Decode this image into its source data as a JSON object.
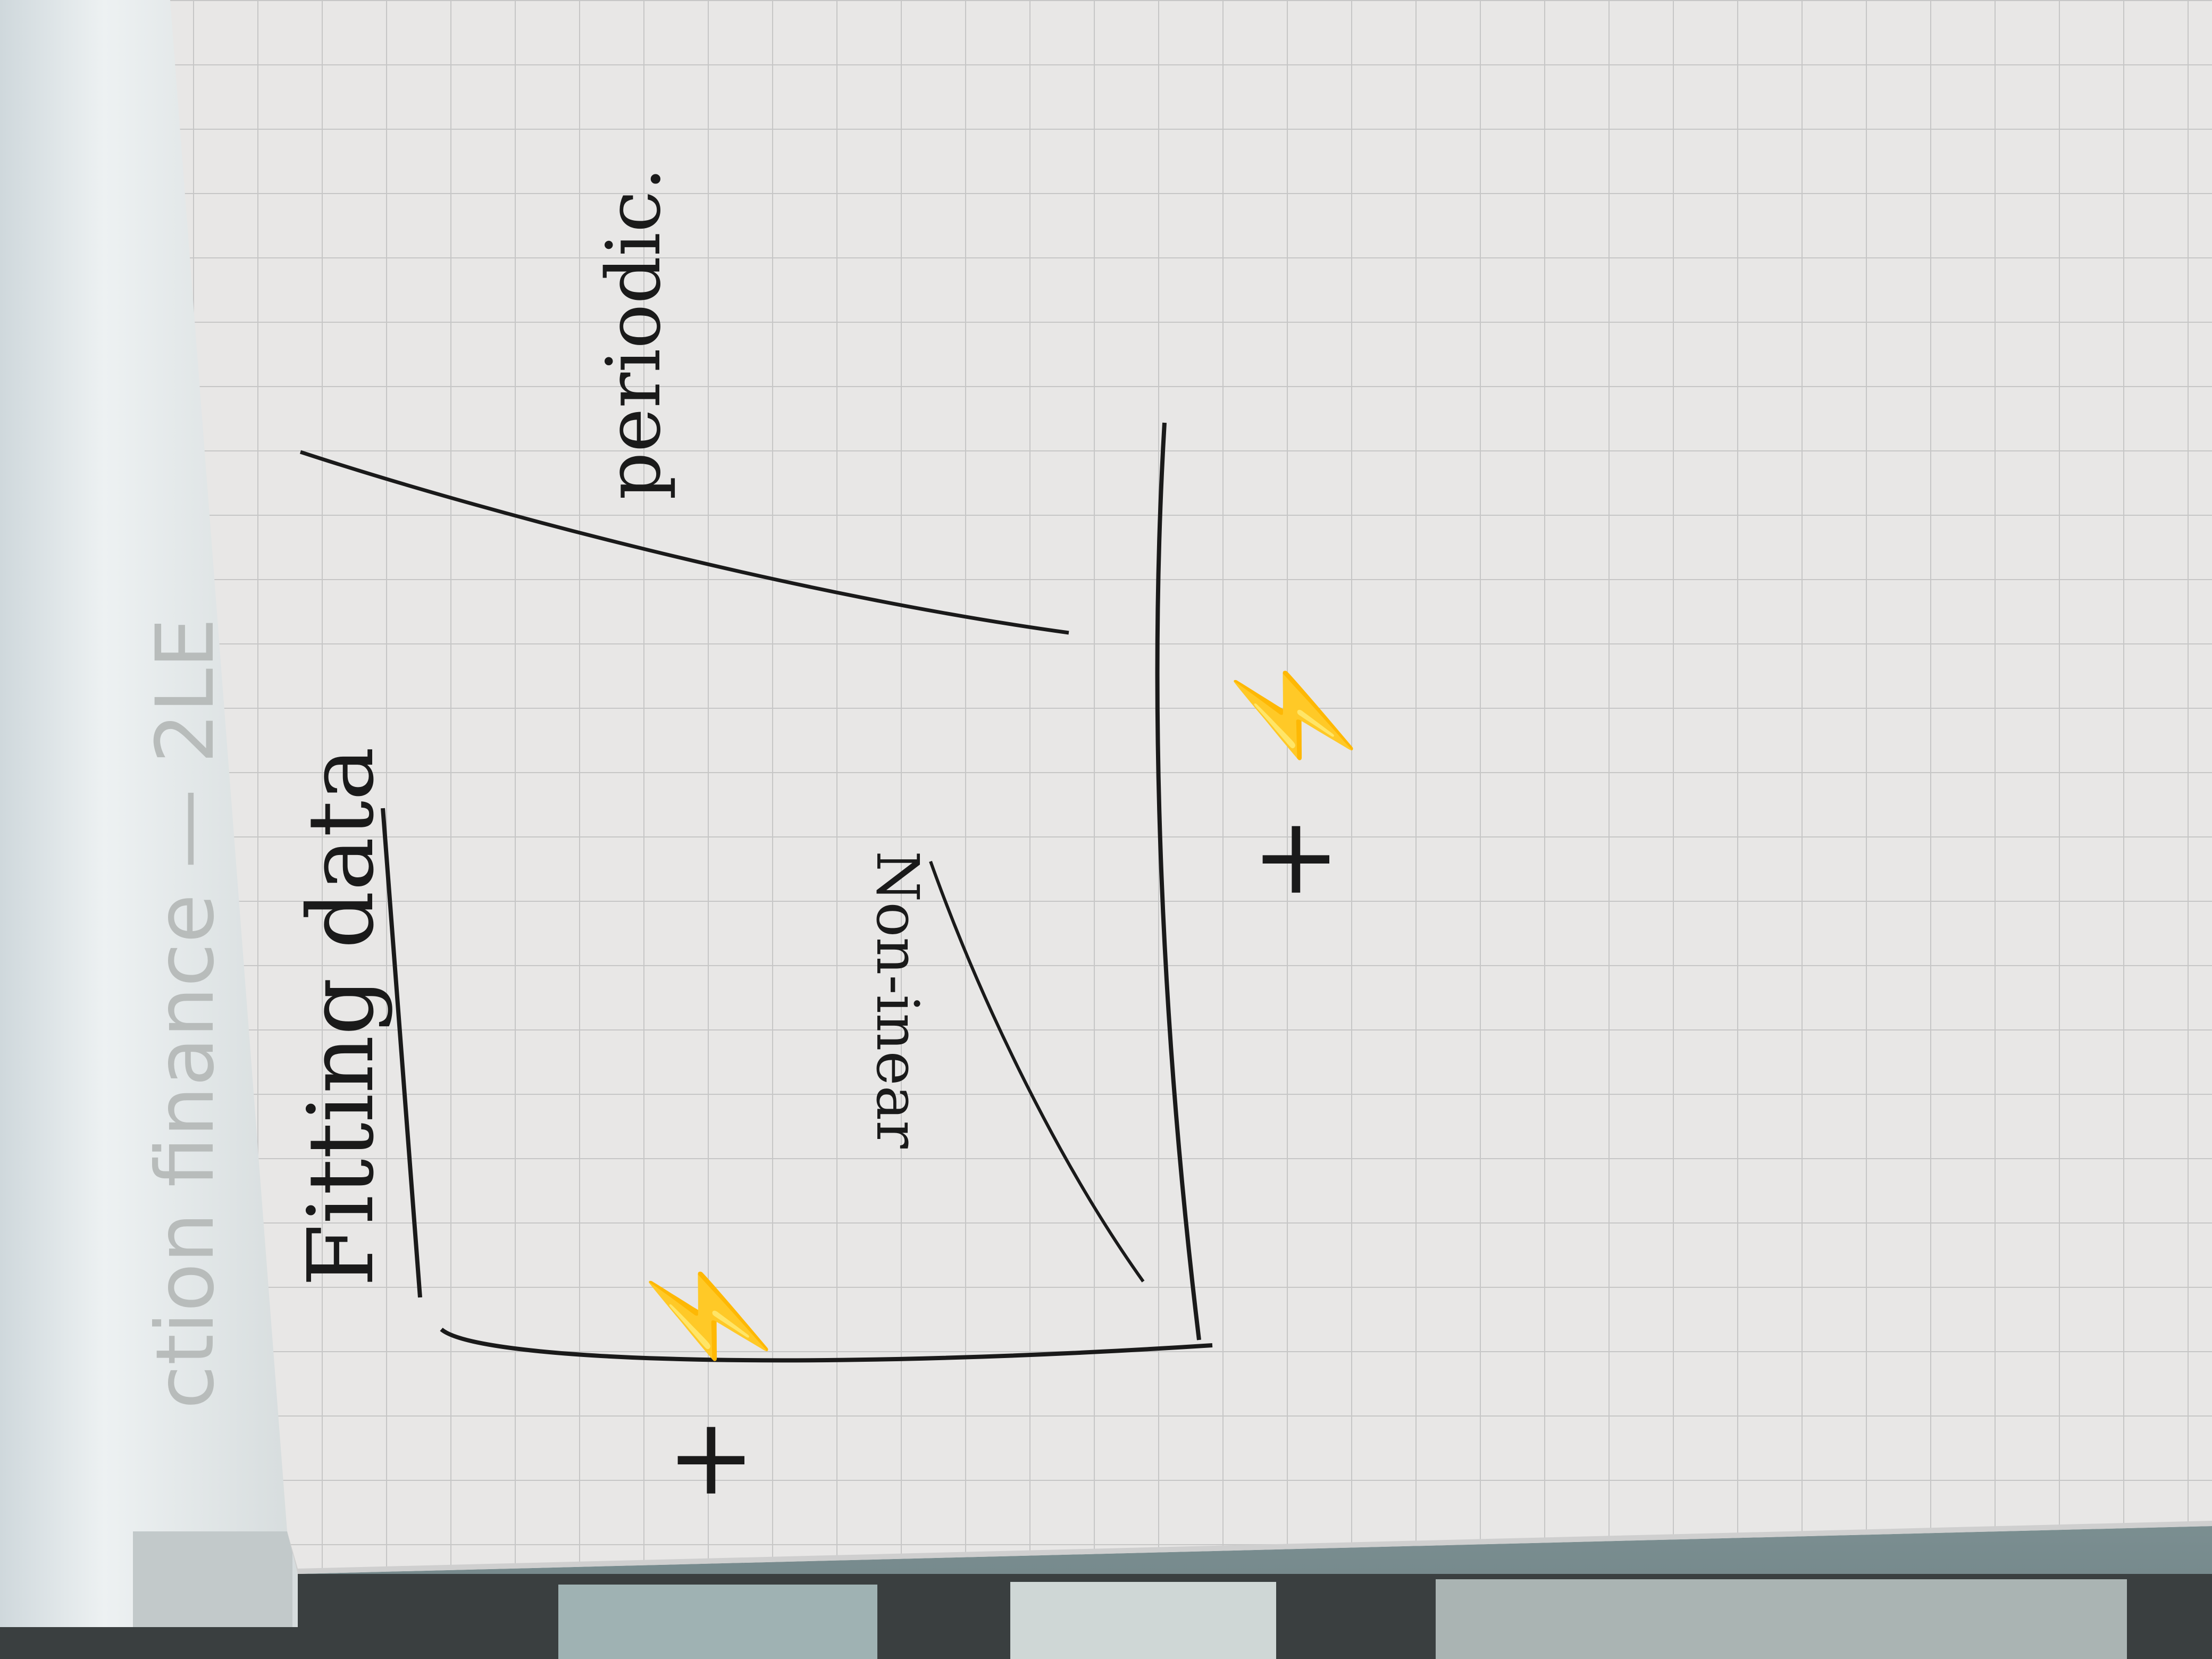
{
  "flipchart": {
    "title": "Fitting data",
    "upper_line_label": "periodic.",
    "lower_line_label": "Non-inear",
    "left_marks": "+ ⚡",
    "right_marks": "+ ⚡"
  },
  "rolled_sheet": {
    "text": "ction finance — 2LE"
  },
  "colors": {
    "paper": "#e8e7e6",
    "grid_line": "#c8c8c8",
    "ink": "#1a1a1a",
    "roll": "#e3e8ea",
    "window": "#7f9a9e"
  }
}
